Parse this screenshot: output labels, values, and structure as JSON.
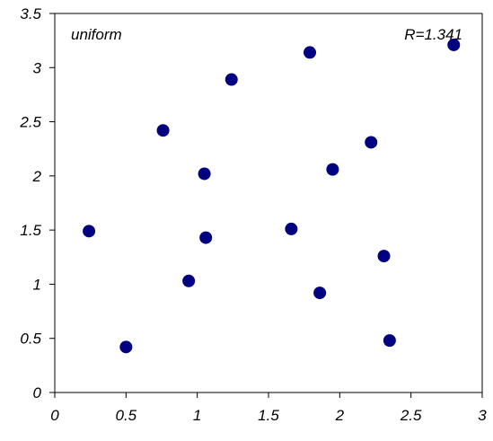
{
  "chart_data": {
    "type": "scatter",
    "title": "",
    "xlabel": "",
    "ylabel": "",
    "xlim": [
      0,
      3
    ],
    "ylim": [
      0,
      3.5
    ],
    "xticks": [
      "0",
      "0.5",
      "1",
      "1.5",
      "2",
      "2.5",
      "3"
    ],
    "yticks": [
      "0",
      "0.5",
      "1",
      "1.5",
      "2",
      "2.5",
      "3",
      "3.5"
    ],
    "grid": false,
    "annotations": {
      "left": "uniform",
      "right": "R=1.341"
    },
    "marker_color": "#000080",
    "series": [
      {
        "x": [
          0.24,
          0.5,
          0.76,
          0.94,
          1.05,
          1.06,
          1.24,
          1.66,
          1.79,
          1.86,
          1.95,
          2.22,
          2.31,
          2.35,
          2.8
        ],
        "y": [
          1.49,
          0.42,
          2.42,
          1.03,
          2.02,
          1.43,
          2.89,
          1.51,
          3.14,
          0.92,
          2.06,
          2.31,
          1.26,
          0.48,
          3.21
        ]
      }
    ]
  }
}
